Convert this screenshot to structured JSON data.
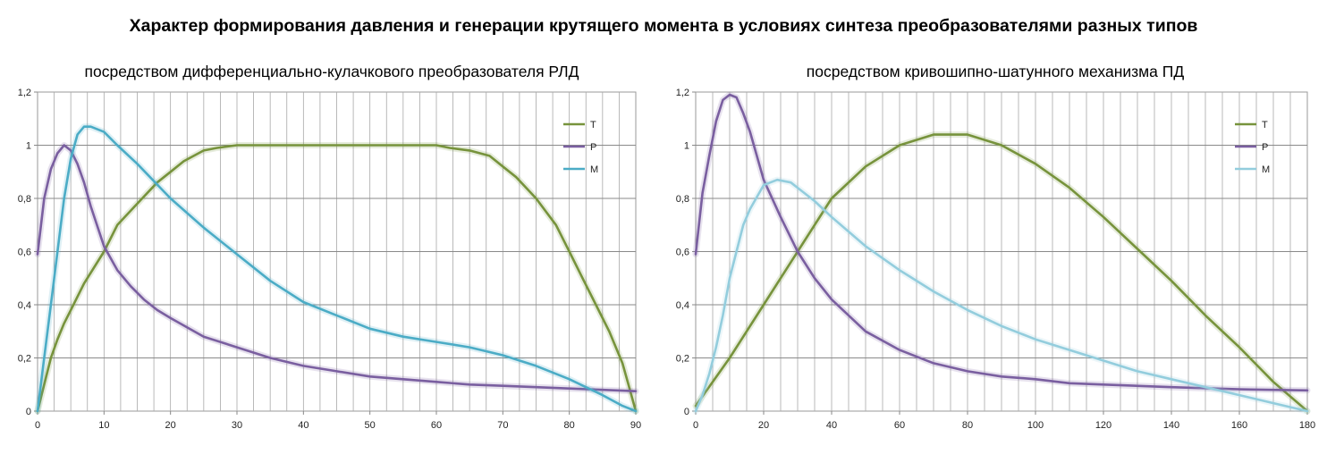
{
  "title": "Характер формирования давления и генерации крутящего момента в условиях синтеза преобразователями разных типов",
  "chart_data": [
    {
      "type": "line",
      "title": "посредством дифференциально-кулачкового преобразователя РЛД",
      "xlim": [
        0,
        90
      ],
      "ylim": [
        0,
        1.2
      ],
      "x_ticks": [
        "0",
        "10",
        "20",
        "30",
        "40",
        "50",
        "60",
        "70",
        "80",
        "90"
      ],
      "y_ticks": [
        "0",
        "0,2",
        "0,4",
        "0,6",
        "0,8",
        "1",
        "1,2"
      ],
      "grid": true,
      "legend_position": "top-right",
      "series": [
        {
          "name": "T",
          "color": "#77933c",
          "x": [
            0,
            1,
            2,
            3,
            4,
            5,
            7,
            10,
            12,
            15,
            18,
            20,
            22,
            25,
            27,
            30,
            40,
            50,
            60,
            62,
            65,
            68,
            70,
            72,
            75,
            78,
            80,
            82,
            84,
            86,
            88,
            89,
            90
          ],
          "y": [
            0,
            0.1,
            0.2,
            0.27,
            0.33,
            0.38,
            0.48,
            0.6,
            0.7,
            0.78,
            0.86,
            0.9,
            0.94,
            0.98,
            0.99,
            1.0,
            1.0,
            1.0,
            1.0,
            0.99,
            0.98,
            0.96,
            0.92,
            0.88,
            0.8,
            0.7,
            0.6,
            0.5,
            0.4,
            0.3,
            0.18,
            0.09,
            0
          ]
        },
        {
          "name": "P",
          "color": "#7a5fa0",
          "x": [
            0,
            1,
            2,
            3,
            4,
            5,
            6,
            7,
            8,
            10,
            12,
            14,
            16,
            18,
            20,
            25,
            30,
            35,
            40,
            45,
            50,
            55,
            60,
            65,
            70,
            75,
            80,
            85,
            90
          ],
          "y": [
            0.59,
            0.8,
            0.91,
            0.97,
            1.0,
            0.98,
            0.93,
            0.86,
            0.77,
            0.62,
            0.53,
            0.47,
            0.42,
            0.38,
            0.35,
            0.28,
            0.24,
            0.2,
            0.17,
            0.15,
            0.13,
            0.12,
            0.11,
            0.1,
            0.095,
            0.09,
            0.085,
            0.08,
            0.075
          ]
        },
        {
          "name": "M",
          "color": "#4bacc6",
          "x": [
            0,
            1,
            2,
            3,
            4,
            5,
            6,
            7,
            8,
            10,
            12,
            15,
            20,
            25,
            30,
            35,
            40,
            45,
            50,
            55,
            60,
            65,
            70,
            75,
            80,
            85,
            88,
            90
          ],
          "y": [
            0,
            0.2,
            0.4,
            0.6,
            0.8,
            0.95,
            1.04,
            1.07,
            1.07,
            1.05,
            1.0,
            0.93,
            0.8,
            0.69,
            0.59,
            0.49,
            0.41,
            0.36,
            0.31,
            0.28,
            0.26,
            0.24,
            0.21,
            0.17,
            0.12,
            0.06,
            0.02,
            0
          ]
        }
      ]
    },
    {
      "type": "line",
      "title": "посредством кривошипно-шатунного механизма ПД",
      "xlim": [
        0,
        180
      ],
      "ylim": [
        0,
        1.2
      ],
      "x_ticks": [
        "0",
        "20",
        "40",
        "60",
        "80",
        "100",
        "120",
        "140",
        "160",
        "180"
      ],
      "y_ticks": [
        "0",
        "0,2",
        "0,4",
        "0,6",
        "0,8",
        "1",
        "1,2"
      ],
      "grid": true,
      "legend_position": "top-right",
      "series": [
        {
          "name": "T",
          "color": "#77933c",
          "x": [
            0,
            10,
            20,
            30,
            40,
            50,
            60,
            70,
            80,
            90,
            100,
            110,
            120,
            130,
            140,
            150,
            160,
            170,
            180
          ],
          "y": [
            0.02,
            0.2,
            0.4,
            0.6,
            0.8,
            0.92,
            1.0,
            1.04,
            1.04,
            1.0,
            0.93,
            0.84,
            0.73,
            0.61,
            0.49,
            0.36,
            0.24,
            0.11,
            0
          ]
        },
        {
          "name": "P",
          "color": "#7a5fa0",
          "x": [
            0,
            2,
            4,
            6,
            8,
            10,
            12,
            14,
            16,
            18,
            20,
            25,
            30,
            35,
            40,
            50,
            60,
            70,
            80,
            90,
            100,
            110,
            120,
            140,
            160,
            180
          ],
          "y": [
            0.59,
            0.82,
            0.96,
            1.09,
            1.17,
            1.19,
            1.18,
            1.12,
            1.05,
            0.96,
            0.87,
            0.73,
            0.6,
            0.5,
            0.42,
            0.3,
            0.23,
            0.18,
            0.15,
            0.13,
            0.12,
            0.105,
            0.1,
            0.09,
            0.082,
            0.078
          ]
        },
        {
          "name": "M",
          "color": "#93cddd",
          "x": [
            0,
            2,
            4,
            6,
            8,
            10,
            12,
            14,
            16,
            20,
            24,
            28,
            30,
            35,
            40,
            50,
            60,
            70,
            80,
            90,
            100,
            110,
            120,
            130,
            140,
            150,
            160,
            170,
            180
          ],
          "y": [
            0,
            0.06,
            0.14,
            0.24,
            0.36,
            0.5,
            0.6,
            0.7,
            0.76,
            0.85,
            0.87,
            0.86,
            0.84,
            0.79,
            0.73,
            0.62,
            0.53,
            0.45,
            0.38,
            0.32,
            0.27,
            0.23,
            0.19,
            0.15,
            0.12,
            0.09,
            0.06,
            0.03,
            0
          ]
        }
      ]
    }
  ]
}
